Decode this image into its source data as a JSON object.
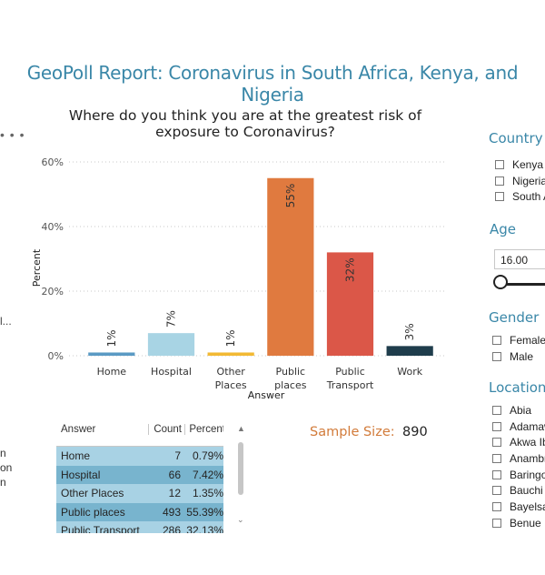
{
  "report_title": "GeoPoll Report: Coronavirus in South Africa, Kenya, and Nigeria",
  "more_options": "• • •",
  "left_fragments": {
    "ellipsis": "l...",
    "lines": [
      "n",
      "on",
      "n"
    ]
  },
  "chart_data": {
    "type": "bar",
    "title_lines": [
      "Where do you think you are at the greatest risk of",
      "exposure to Coronavirus?"
    ],
    "xlabel": "Answer",
    "ylabel": "Percent",
    "categories": [
      "Home",
      "Hospital",
      "Other Places",
      "Public places",
      "Public Transport",
      "Work"
    ],
    "category_label_lines": [
      [
        "Home"
      ],
      [
        "Hospital"
      ],
      [
        "Other",
        "Places"
      ],
      [
        "Public",
        "places"
      ],
      [
        "Public",
        "Transport"
      ],
      [
        "Work"
      ]
    ],
    "values": [
      1,
      7,
      1,
      55,
      32,
      3
    ],
    "data_labels": [
      "1%",
      "7%",
      "1%",
      "55%",
      "32%",
      "3%"
    ],
    "colors": [
      "#5a9ac4",
      "#a8d4e4",
      "#f2b933",
      "#e07a3f",
      "#db5748",
      "#1f3d4c"
    ],
    "ylim": [
      0,
      60
    ],
    "yticks": [
      0,
      20,
      40,
      60
    ],
    "ytick_labels": [
      "0%",
      "20%",
      "40%",
      "60%"
    ],
    "grid": true
  },
  "table": {
    "headers": {
      "answer": "Answer",
      "count": "Count",
      "percent": "Percent"
    },
    "rows": [
      {
        "answer": "Home",
        "count": "7",
        "percent": "0.79%"
      },
      {
        "answer": "Hospital",
        "count": "66",
        "percent": "7.42%"
      },
      {
        "answer": "Other Places",
        "count": "12",
        "percent": "1.35%"
      },
      {
        "answer": "Public places",
        "count": "493",
        "percent": "55.39%"
      },
      {
        "answer": "Public Transport",
        "count": "286",
        "percent": "32.13%"
      }
    ]
  },
  "sample_size": {
    "label": "Sample Size:",
    "value": "890"
  },
  "slicers": {
    "country": {
      "title": "Country",
      "options": [
        "Kenya",
        "Nigeria",
        "South A"
      ]
    },
    "age": {
      "title": "Age",
      "value": "16.00"
    },
    "gender": {
      "title": "Gender",
      "options": [
        "Female",
        "Male"
      ]
    },
    "location": {
      "title": "Location",
      "options": [
        "Abia",
        "Adamaw",
        "Akwa Ib",
        "Anambr",
        "Baringo",
        "Bauchi",
        "Bayelsa",
        "Benue"
      ]
    }
  }
}
